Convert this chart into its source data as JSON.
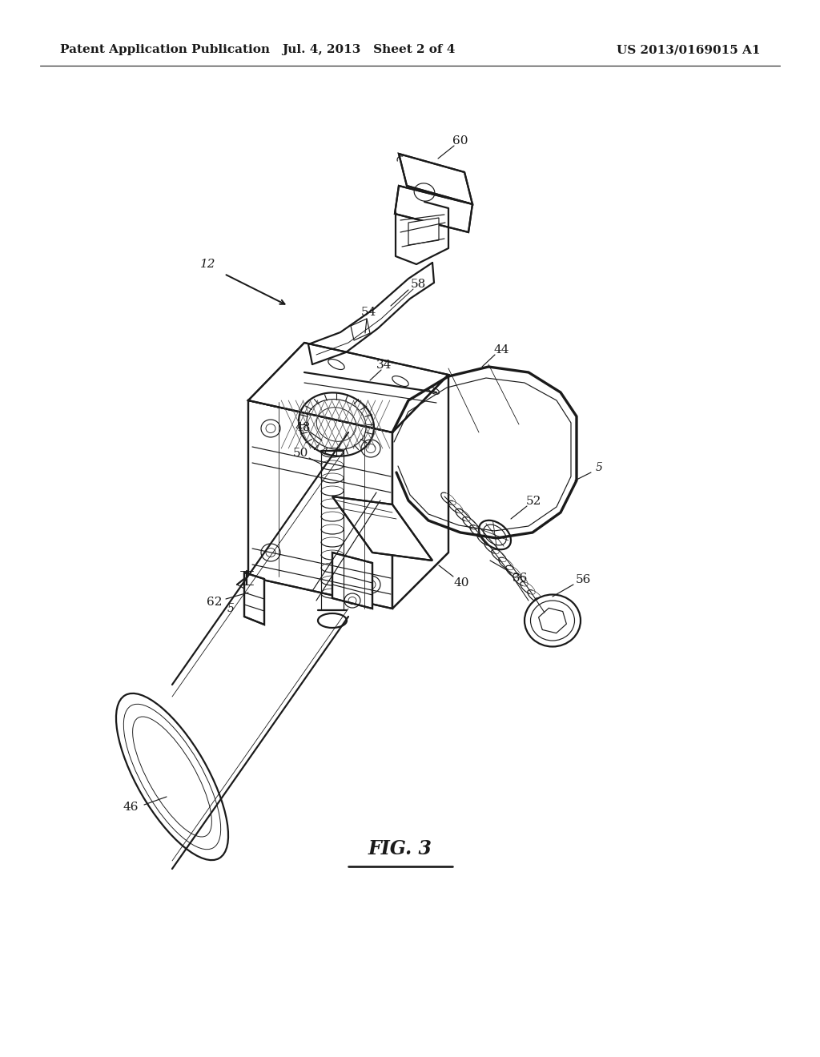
{
  "bg_color": "#ffffff",
  "header_left": "Patent Application Publication",
  "header_center": "Jul. 4, 2013   Sheet 2 of 4",
  "header_right": "US 2013/0169015 A1",
  "fig_label": "FIG. 3",
  "text_color": "#1a1a1a",
  "line_color": "#1a1a1a",
  "header_fontsize": 11,
  "label_fontsize": 11,
  "fig_label_fontsize": 15,
  "lw_main": 1.6,
  "lw_thin": 0.85,
  "lw_thick": 2.2
}
